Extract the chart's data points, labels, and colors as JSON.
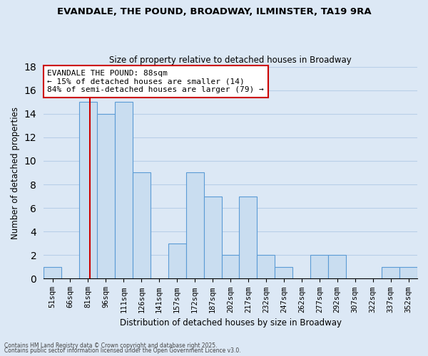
{
  "title": "EVANDALE, THE POUND, BROADWAY, ILMINSTER, TA19 9RA",
  "subtitle": "Size of property relative to detached houses in Broadway",
  "xlabel": "Distribution of detached houses by size in Broadway",
  "ylabel": "Number of detached properties",
  "bar_labels": [
    "51sqm",
    "66sqm",
    "81sqm",
    "96sqm",
    "111sqm",
    "126sqm",
    "141sqm",
    "157sqm",
    "172sqm",
    "187sqm",
    "202sqm",
    "217sqm",
    "232sqm",
    "247sqm",
    "262sqm",
    "277sqm",
    "292sqm",
    "307sqm",
    "322sqm",
    "337sqm",
    "352sqm"
  ],
  "bar_values": [
    1,
    0,
    15,
    14,
    15,
    9,
    0,
    3,
    9,
    7,
    2,
    7,
    2,
    1,
    0,
    2,
    2,
    0,
    0,
    1,
    1
  ],
  "bar_color": "#c9ddf0",
  "bar_edge_color": "#5b9bd5",
  "vline_color": "#cc0000",
  "vline_xindex": 2.2,
  "ylim": [
    0,
    18
  ],
  "yticks": [
    0,
    2,
    4,
    6,
    8,
    10,
    12,
    14,
    16,
    18
  ],
  "annotation_title": "EVANDALE THE POUND: 88sqm",
  "annotation_line1": "← 15% of detached houses are smaller (14)",
  "annotation_line2": "84% of semi-detached houses are larger (79) →",
  "annotation_box_color": "#ffffff",
  "annotation_box_edge": "#cc0000",
  "grid_color": "#b8cfe8",
  "background_color": "#dce8f5",
  "footnote1": "Contains HM Land Registry data © Crown copyright and database right 2025.",
  "footnote2": "Contains public sector information licensed under the Open Government Licence v3.0."
}
